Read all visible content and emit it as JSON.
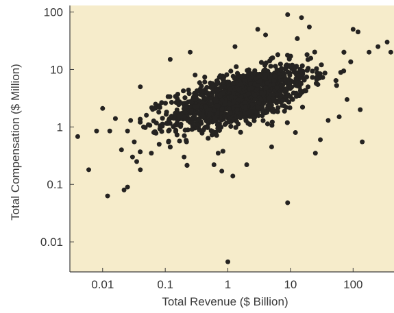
{
  "chart_data": {
    "type": "scatter",
    "title": "",
    "xlabel": "Total Revenue ($ Billion)",
    "ylabel": "Total Compensation ($ Million)",
    "x_scale": "log",
    "y_scale": "log",
    "xlim": [
      0.003,
      450
    ],
    "ylim": [
      0.003,
      130
    ],
    "x_ticks": [
      0.01,
      0.1,
      1,
      10,
      100
    ],
    "x_tick_labels": [
      "0.01",
      "0.1",
      "1",
      "10",
      "100"
    ],
    "y_ticks": [
      0.01,
      0.1,
      1,
      10,
      100
    ],
    "y_tick_labels": [
      "0.01",
      "0.1",
      "1",
      "10",
      "100"
    ],
    "grid": false,
    "colors": {
      "plot_background": "#f6eccb",
      "marker": "#252321",
      "axis": "#3a3a3a"
    },
    "outliers": [
      {
        "x": 0.004,
        "y": 0.68
      },
      {
        "x": 0.006,
        "y": 0.18
      },
      {
        "x": 0.008,
        "y": 0.85
      },
      {
        "x": 0.01,
        "y": 2.1
      },
      {
        "x": 0.012,
        "y": 0.063
      },
      {
        "x": 0.013,
        "y": 0.85
      },
      {
        "x": 0.016,
        "y": 1.4
      },
      {
        "x": 0.02,
        "y": 0.4
      },
      {
        "x": 0.022,
        "y": 0.08
      },
      {
        "x": 0.025,
        "y": 0.09
      },
      {
        "x": 0.025,
        "y": 0.85
      },
      {
        "x": 0.028,
        "y": 1.3
      },
      {
        "x": 0.03,
        "y": 0.3
      },
      {
        "x": 0.032,
        "y": 0.55
      },
      {
        "x": 0.035,
        "y": 0.25
      },
      {
        "x": 0.04,
        "y": 5.0
      },
      {
        "x": 0.04,
        "y": 0.18
      },
      {
        "x": 0.045,
        "y": 1.0
      },
      {
        "x": 0.05,
        "y": 1.6
      },
      {
        "x": 0.06,
        "y": 0.35
      },
      {
        "x": 0.07,
        "y": 2.5
      },
      {
        "x": 0.08,
        "y": 0.5
      },
      {
        "x": 0.12,
        "y": 15
      },
      {
        "x": 0.2,
        "y": 0.3
      },
      {
        "x": 0.25,
        "y": 20
      },
      {
        "x": 0.3,
        "y": 8
      },
      {
        "x": 0.6,
        "y": 0.22
      },
      {
        "x": 0.7,
        "y": 0.35
      },
      {
        "x": 0.8,
        "y": 0.17
      },
      {
        "x": 1.0,
        "y": 0.0045
      },
      {
        "x": 1.2,
        "y": 0.14
      },
      {
        "x": 1.3,
        "y": 25
      },
      {
        "x": 2.0,
        "y": 0.22
      },
      {
        "x": 3.0,
        "y": 50
      },
      {
        "x": 4.0,
        "y": 40
      },
      {
        "x": 5.0,
        "y": 0.45
      },
      {
        "x": 9.0,
        "y": 0.048
      },
      {
        "x": 9.0,
        "y": 90
      },
      {
        "x": 12,
        "y": 0.8
      },
      {
        "x": 15,
        "y": 80
      },
      {
        "x": 20,
        "y": 55
      },
      {
        "x": 25,
        "y": 0.35
      },
      {
        "x": 30,
        "y": 0.6
      },
      {
        "x": 40,
        "y": 1.3
      },
      {
        "x": 60,
        "y": 1.5
      },
      {
        "x": 80,
        "y": 3.0
      },
      {
        "x": 100,
        "y": 50
      },
      {
        "x": 120,
        "y": 45
      },
      {
        "x": 130,
        "y": 2.0
      },
      {
        "x": 140,
        "y": 0.55
      },
      {
        "x": 180,
        "y": 20
      },
      {
        "x": 250,
        "y": 25
      },
      {
        "x": 350,
        "y": 30
      },
      {
        "x": 400,
        "y": 20
      }
    ],
    "cloud": {
      "n": 1300,
      "log10_x_mean": 0.2,
      "log10_x_sd": 0.55,
      "log10_x_min": -1.4,
      "log10_x_max": 2.4,
      "log10_y_intercept": 0.45,
      "log10_y_slope": 0.3,
      "log10_y_sd": 0.22
    }
  }
}
